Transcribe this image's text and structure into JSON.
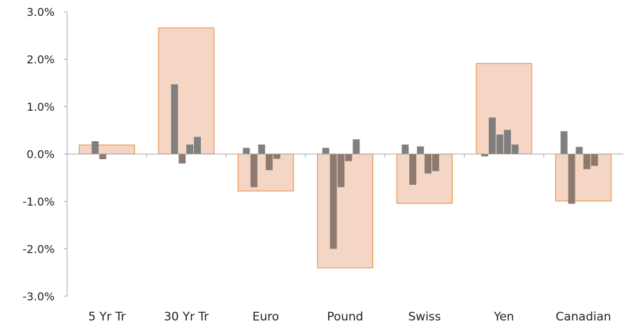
{
  "chart_data": {
    "type": "bar",
    "title": "",
    "xlabel": "",
    "ylabel": "",
    "ylim": [
      -0.03,
      0.03
    ],
    "y_ticks": [
      {
        "value": 0.03,
        "label": "3.0%"
      },
      {
        "value": 0.02,
        "label": "2.0%"
      },
      {
        "value": 0.01,
        "label": "1.0%"
      },
      {
        "value": 0.0,
        "label": "0.0%"
      },
      {
        "value": -0.01,
        "label": "-1.0%"
      },
      {
        "value": -0.02,
        "label": "-2.0%"
      },
      {
        "value": -0.03,
        "label": "-3.0%"
      }
    ],
    "grid": false,
    "legend": "none",
    "categories": [
      "5 Yr Tr",
      "30 Yr Tr",
      "Euro",
      "Pound",
      "Swiss",
      "Yen",
      "Canadian"
    ],
    "series": [
      {
        "values": [
          0.0019,
          0.0266,
          -0.0078,
          -0.024,
          -0.0104,
          0.0191,
          -0.0099
        ],
        "color": "#f5d6c4",
        "edge_color": "#e8964f"
      },
      {
        "values": [
          [
            0.0,
            0.0027,
            -0.0011,
            0.0,
            0.0,
            0.0
          ],
          [
            0.0,
            0.0147,
            -0.002,
            0.002,
            0.0036,
            0.0
          ],
          [
            0.0013,
            -0.007,
            0.002,
            -0.0034,
            -0.001,
            0.0
          ],
          [
            0.0013,
            -0.02,
            -0.007,
            -0.0015,
            0.0031,
            0.0
          ],
          [
            0.002,
            -0.0065,
            0.0016,
            -0.0041,
            -0.0036,
            0.0
          ],
          [
            -0.0005,
            0.0077,
            0.0041,
            0.0051,
            0.002,
            0.0
          ],
          [
            0.0048,
            -0.0105,
            0.0015,
            -0.0032,
            -0.0025,
            0.0
          ]
        ],
        "color": "#8c7a70",
        "alt_color": "#7f7f7f"
      }
    ]
  }
}
